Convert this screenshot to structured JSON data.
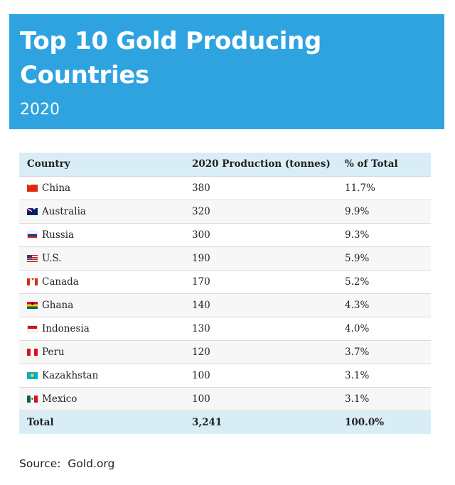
{
  "header": {
    "title": "Top 10 Gold Producing Countries",
    "subtitle": "2020",
    "background_color": "#2ea3e0"
  },
  "table": {
    "columns": [
      "Country",
      "2020 Production (tonnes)",
      "% of Total"
    ],
    "rows": [
      {
        "flag": "china-flag-icon",
        "country": "China",
        "production": "380",
        "share": "11.7%"
      },
      {
        "flag": "australia-flag-icon",
        "country": "Australia",
        "production": "320",
        "share": "9.9%"
      },
      {
        "flag": "russia-flag-icon",
        "country": "Russia",
        "production": "300",
        "share": "9.3%"
      },
      {
        "flag": "us-flag-icon",
        "country": "U.S.",
        "production": "190",
        "share": "5.9%"
      },
      {
        "flag": "canada-flag-icon",
        "country": "Canada",
        "production": "170",
        "share": "5.2%"
      },
      {
        "flag": "ghana-flag-icon",
        "country": "Ghana",
        "production": "140",
        "share": "4.3%"
      },
      {
        "flag": "indonesia-flag-icon",
        "country": "Indonesia",
        "production": "130",
        "share": "4.0%"
      },
      {
        "flag": "peru-flag-icon",
        "country": "Peru",
        "production": "120",
        "share": "3.7%"
      },
      {
        "flag": "kazakhstan-flag-icon",
        "country": "Kazakhstan",
        "production": "100",
        "share": "3.1%"
      },
      {
        "flag": "mexico-flag-icon",
        "country": "Mexico",
        "production": "100",
        "share": "3.1%"
      }
    ],
    "total": {
      "label": "Total",
      "production": "3,241",
      "share": "100.0%"
    },
    "header_row_color": "#d9edf7"
  },
  "footer": {
    "source": "Source:  Gold.org"
  }
}
